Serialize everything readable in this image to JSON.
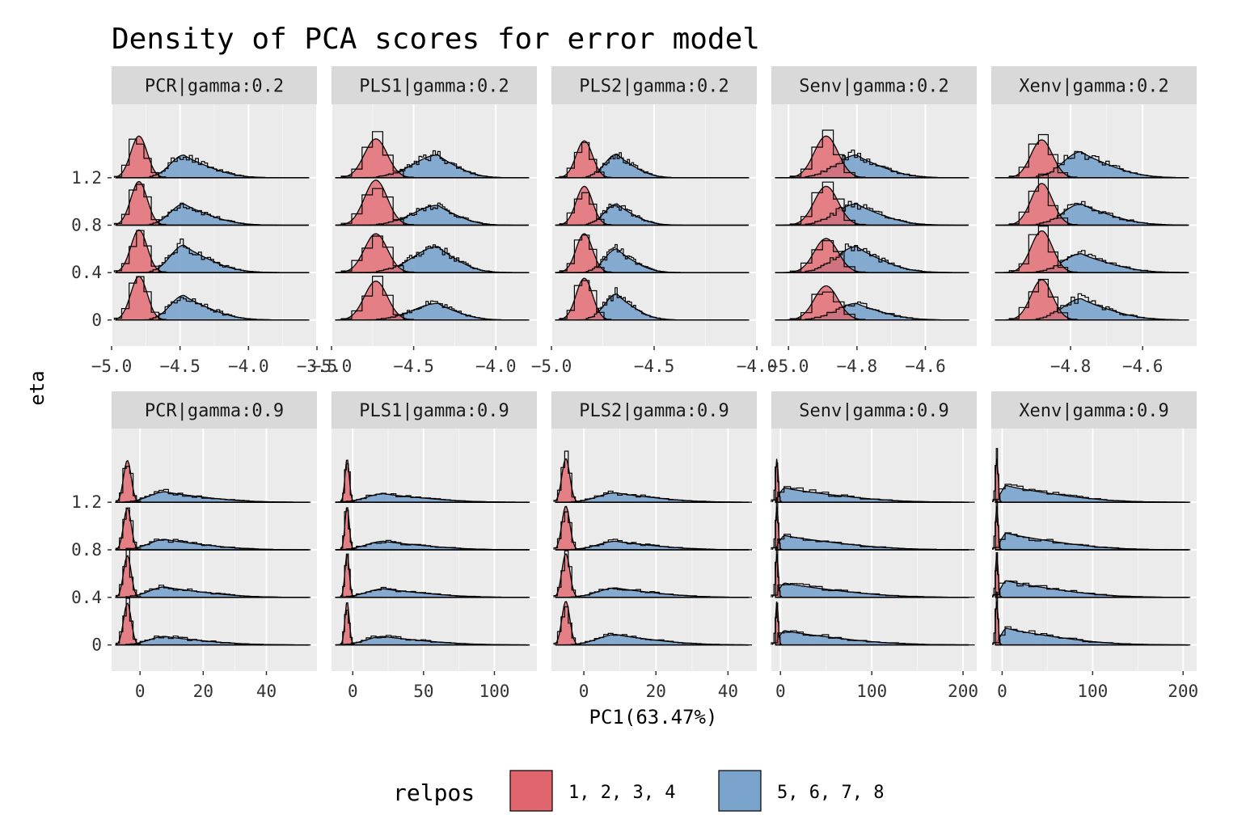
{
  "chart_data": {
    "type": "density_ridges",
    "title": "Density of PCA scores for error model",
    "xlabel": "PC1(63.47%)",
    "ylabel": "eta",
    "eta_levels": [
      0,
      0.4,
      0.8,
      1.2
    ],
    "y_tick_labels": [
      "0",
      "0.4",
      "0.8",
      "1.2"
    ],
    "legend": {
      "title": "relpos",
      "entries": [
        {
          "label": "1, 2, 3, 4",
          "color": "#E0666E"
        },
        {
          "label": "5, 6, 7, 8",
          "color": "#7AA3CC"
        }
      ]
    },
    "colors": {
      "red": "#E0666E",
      "blue": "#7AA3CC",
      "panel": "#EBEBEB",
      "strip": "#D9D9D9",
      "grid": "#FFFFFF"
    },
    "panels": [
      {
        "strip": "PCR|gamma:0.2",
        "xlim": [
          -5.0,
          -3.5
        ],
        "x_ticks": [
          -5.0,
          -4.5,
          -4.0,
          -3.5
        ],
        "x_tick_labels": [
          "−5.0",
          "−4.5",
          "−4.0",
          "−3.5"
        ],
        "red": {
          "center": -4.8,
          "sd": 0.06,
          "heights": [
            0.92,
            0.9,
            0.92,
            0.88
          ]
        },
        "blue": {
          "center": -4.47,
          "sd": 0.1,
          "heights": [
            0.52,
            0.58,
            0.45,
            0.48
          ],
          "tail": -3.85
        }
      },
      {
        "strip": "PLS1|gamma:0.2",
        "xlim": [
          -5.0,
          -3.75
        ],
        "x_ticks": [
          -5.0,
          -4.5,
          -4.0
        ],
        "x_tick_labels": [
          "−5.0",
          "−4.5",
          "−4.0"
        ],
        "red": {
          "center": -4.73,
          "sd": 0.07,
          "heights": [
            0.82,
            0.82,
            0.95,
            0.82
          ]
        },
        "blue": {
          "center": -4.35,
          "sd": 0.15,
          "heights": [
            0.35,
            0.55,
            0.42,
            0.48
          ],
          "tail": -3.95
        }
      },
      {
        "strip": "PLS2|gamma:0.2",
        "xlim": [
          -5.0,
          -4.0
        ],
        "x_ticks": [
          -5.0,
          -4.5,
          -4.0
        ],
        "x_tick_labels": [
          "−5.0",
          "−4.5",
          "−4.0"
        ],
        "red": {
          "center": -4.84,
          "sd": 0.04,
          "heights": [
            0.88,
            0.82,
            0.82,
            0.78
          ]
        },
        "blue": {
          "center": -4.68,
          "sd": 0.06,
          "heights": [
            0.55,
            0.5,
            0.45,
            0.5
          ],
          "tail": -4.4
        }
      },
      {
        "strip": "Senv|gamma:0.2",
        "xlim": [
          -5.05,
          -4.45
        ],
        "x_ticks": [
          -5.0,
          -4.8,
          -4.6
        ],
        "x_tick_labels": [
          "−5.0",
          "−4.8",
          "−4.6"
        ],
        "red": {
          "center": -4.89,
          "sd": 0.035,
          "heights": [
            0.72,
            0.72,
            0.82,
            0.88
          ]
        },
        "blue": {
          "center": -4.8,
          "sd": 0.06,
          "heights": [
            0.35,
            0.55,
            0.45,
            0.48
          ],
          "tail": -4.55
        }
      },
      {
        "strip": "Xenv|gamma:0.2",
        "xlim": [
          -5.02,
          -4.45
        ],
        "x_ticks": [
          -4.8,
          -4.6
        ],
        "x_tick_labels": [
          "−4.8",
          "−4.6"
        ],
        "red": {
          "center": -4.88,
          "sd": 0.03,
          "heights": [
            0.85,
            0.88,
            0.88,
            0.8
          ]
        },
        "blue": {
          "center": -4.77,
          "sd": 0.05,
          "heights": [
            0.45,
            0.4,
            0.45,
            0.55
          ],
          "tail": -4.5
        }
      },
      {
        "strip": "PCR|gamma:0.9",
        "xlim": [
          -9,
          56
        ],
        "x_ticks": [
          0,
          20,
          40
        ],
        "x_tick_labels": [
          "0",
          "20",
          "40"
        ],
        "red": {
          "center": -4,
          "sd": 1.2,
          "heights": [
            0.88,
            0.88,
            0.88,
            0.88
          ]
        },
        "blue": {
          "center": 8,
          "sd": 5,
          "heights": [
            0.18,
            0.22,
            0.22,
            0.22
          ],
          "tail": 50
        }
      },
      {
        "strip": "PLS1|gamma:0.9",
        "xlim": [
          -15,
          130
        ],
        "x_ticks": [
          0,
          50,
          100
        ],
        "x_tick_labels": [
          "0",
          "50",
          "100"
        ],
        "red": {
          "center": -4,
          "sd": 1.5,
          "heights": [
            0.92,
            0.92,
            0.92,
            0.92
          ]
        },
        "blue": {
          "center": 22,
          "sd": 12,
          "heights": [
            0.18,
            0.18,
            0.18,
            0.18
          ],
          "tail": 120
        }
      },
      {
        "strip": "PLS2|gamma:0.9",
        "xlim": [
          -9,
          48
        ],
        "x_ticks": [
          0,
          20,
          40
        ],
        "x_tick_labels": [
          "0",
          "20",
          "40"
        ],
        "red": {
          "center": -5,
          "sd": 1.1,
          "heights": [
            0.92,
            0.92,
            0.92,
            0.92
          ]
        },
        "blue": {
          "center": 9,
          "sd": 5,
          "heights": [
            0.22,
            0.2,
            0.18,
            0.2
          ],
          "tail": 45
        }
      },
      {
        "strip": "Senv|gamma:0.9",
        "xlim": [
          -10,
          215
        ],
        "x_ticks": [
          0,
          100,
          200
        ],
        "x_tick_labels": [
          "0",
          "100",
          "200"
        ],
        "red": {
          "center": -4,
          "sd": 1.5,
          "heights": [
            0.92,
            0.92,
            0.92,
            0.92
          ]
        },
        "blue": {
          "center": 5,
          "sd": 6,
          "heights": [
            0.3,
            0.3,
            0.3,
            0.3
          ],
          "tail": 200
        }
      },
      {
        "strip": "Xenv|gamma:0.9",
        "xlim": [
          -12,
          215
        ],
        "x_ticks": [
          0,
          100,
          200
        ],
        "x_tick_labels": [
          "0",
          "100",
          "200"
        ],
        "red": {
          "center": -6,
          "sd": 1.5,
          "heights": [
            0.92,
            0.92,
            0.92,
            0.92
          ]
        },
        "blue": {
          "center": 5,
          "sd": 6,
          "heights": [
            0.35,
            0.35,
            0.35,
            0.35
          ],
          "tail": 190
        }
      }
    ]
  }
}
